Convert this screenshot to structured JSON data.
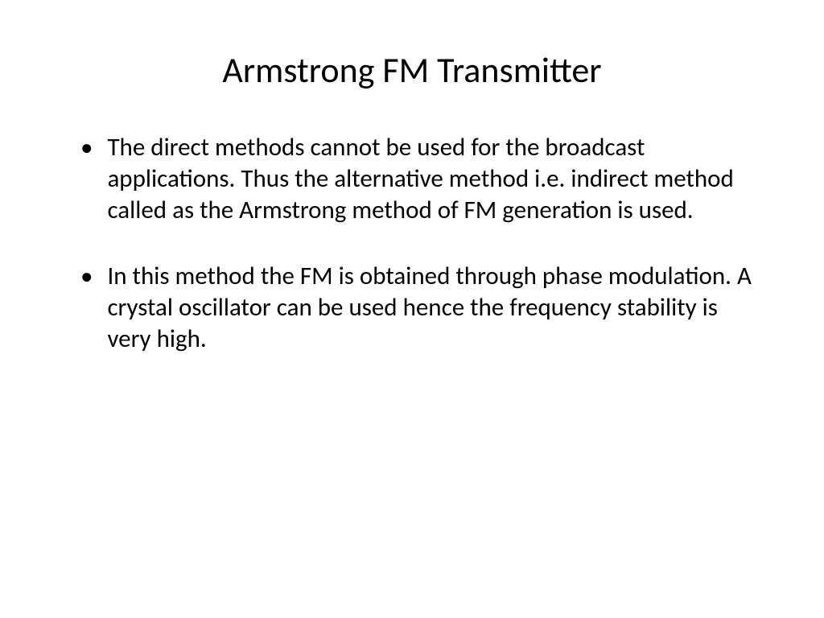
{
  "slide": {
    "title": "Armstrong FM Transmitter",
    "title_fontsize": 44,
    "title_color": "#000000",
    "bullets": [
      {
        "text": "The direct methods cannot be used for the broadcast applications. Thus the alternative method i.e. indirect method called as the Armstrong method of FM generation is used."
      },
      {
        "text": "In this method the FM is obtained through phase modulation. A crystal oscillator can be used hence the frequency stability is very high."
      }
    ],
    "bullet_marker": "•",
    "body_fontsize": 31,
    "body_color": "#000000",
    "background_color": "#ffffff",
    "font_family": "Calibri"
  }
}
